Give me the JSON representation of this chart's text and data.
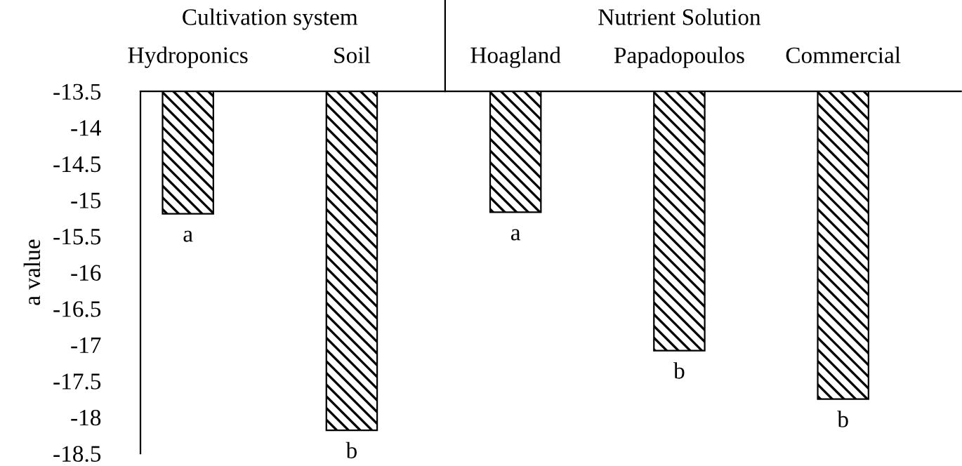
{
  "chart_data": {
    "type": "bar",
    "ylabel": "a value",
    "categories": [
      "Hydroponics",
      "Soil",
      "Hoagland",
      "Papadopoulos",
      "Commercial"
    ],
    "values": [
      -15.19,
      -18.18,
      -15.17,
      -17.08,
      -17.75
    ],
    "color": "#000000",
    "ylim": [
      -18.5,
      -13.5
    ],
    "yticks": [
      -18.5,
      -18,
      -17.5,
      -17,
      -16.5,
      -16,
      -15.5,
      -15,
      -14.5,
      -14,
      -13.5
    ],
    "grid": false,
    "annotations": [
      "Cultivation system",
      "Nutrient Solution",
      {
        "text": "a",
        "x": "Hydroponics",
        "y": -15.19
      },
      {
        "text": "b",
        "x": "Soil",
        "y": -18.18
      },
      {
        "text": "a",
        "x": "Hoagland",
        "y": -15.17
      },
      {
        "text": "b",
        "x": "Papadopoulos",
        "y": -17.08
      },
      {
        "text": "b",
        "x": "Commercial",
        "y": -17.75
      }
    ]
  }
}
